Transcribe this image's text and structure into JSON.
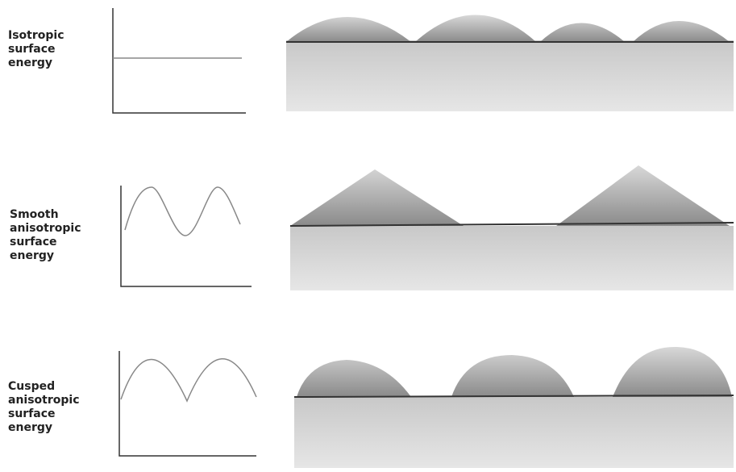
{
  "figure": {
    "rows": [
      {
        "label_lines": [
          "Isotropic",
          "surface",
          "energy"
        ]
      },
      {
        "label_lines": [
          "Smooth",
          "anisotropic",
          "surface",
          "energy"
        ]
      },
      {
        "label_lines": [
          "Cusped",
          "anisotropic",
          "surface",
          "energy"
        ]
      }
    ]
  }
}
